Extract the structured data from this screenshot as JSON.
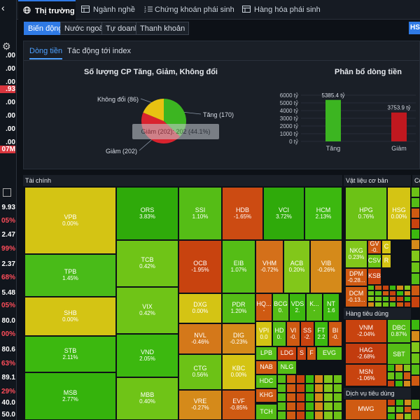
{
  "tabs": [
    {
      "label": "Thị trường",
      "icon": "globe-icon",
      "active": true
    },
    {
      "label": "Ngành nghề",
      "icon": "table-icon",
      "active": false
    },
    {
      "label": "Chứng khoán phái sinh",
      "icon": "sort-icon",
      "active": false
    },
    {
      "label": "Hàng hóa phái sinh",
      "icon": "table-icon",
      "active": false
    }
  ],
  "subtabs": [
    "Biến động",
    "Nước ngoài",
    "Tự doanh",
    "Thanh khoản"
  ],
  "hs_button": "HSX",
  "left_values": [
    {
      "text": ".00",
      "color": "#ffffff"
    },
    {
      "text": ".00",
      "color": "#ffffff"
    },
    {
      "text": ".00",
      "color": "#ffffff"
    },
    {
      "text": ".93",
      "color": "#ffffff",
      "bg": "#d9363e"
    },
    {
      "text": ".00",
      "color": "#ffffff"
    },
    {
      "text": ".00",
      "color": "#ffffff"
    },
    {
      "text": ".00",
      "color": "#ffffff"
    },
    {
      "text": ".00",
      "color": "#ffffff"
    },
    {
      "text": "07M",
      "color": "#ffffff",
      "bg": "#d9363e"
    },
    {
      "text": "9.93",
      "color": "#ffffff"
    },
    {
      "text": "05%",
      "color": "#ff4d5a"
    },
    {
      "text": "2.47",
      "color": "#ffffff"
    },
    {
      "text": "99%",
      "color": "#ff4d5a"
    },
    {
      "text": "2.37",
      "color": "#ffffff"
    },
    {
      "text": "68%",
      "color": "#ff4d5a"
    },
    {
      "text": "5.48",
      "color": "#ffffff"
    },
    {
      "text": "05%",
      "color": "#ff4d5a"
    },
    {
      "text": "80.0",
      "color": "#ffffff"
    },
    {
      "text": "00%",
      "color": "#ff4d5a"
    },
    {
      "text": "80.6",
      "color": "#ffffff"
    },
    {
      "text": "63%",
      "color": "#ff4d5a"
    },
    {
      "text": "89.1",
      "color": "#ffffff"
    },
    {
      "text": "29%",
      "color": "#ff4d5a"
    },
    {
      "text": "40.0",
      "color": "#ffffff"
    },
    {
      "text": "50.0",
      "color": "#ffffff"
    }
  ],
  "panel": {
    "tabs": [
      "Dòng tiền",
      "Tác động tới index"
    ],
    "pie_title": "Số lượng CP Tăng, Giảm, Không đổi",
    "bar_title": "Phân bổ dòng tiền"
  },
  "chart_data": [
    {
      "type": "pie",
      "title": "Số lượng CP Tăng, Giảm, Không đổi",
      "slices": [
        {
          "label": "Tăng (170)",
          "value": 170,
          "color": "#3cb521"
        },
        {
          "label": "Giảm (202)",
          "value": 202,
          "color": "#d9232e"
        },
        {
          "label": "Không đổi (86)",
          "value": 86,
          "color": "#e8c212"
        }
      ],
      "tooltip": "Giảm (202): 202 (44.1%)"
    },
    {
      "type": "bar",
      "title": "Phân bổ dòng tiền",
      "categories": [
        "Tăng",
        "Giảm"
      ],
      "values": [
        5385.4,
        3753.9
      ],
      "value_labels": [
        "5385.4 tỷ",
        "3753.9 tỷ"
      ],
      "colors": [
        "#3cb521",
        "#c0181f"
      ],
      "ylim": [
        0,
        6000
      ],
      "yticks": [
        "6000 tỷ",
        "5000 tỷ",
        "4000 tỷ",
        "3000 tỷ",
        "2000 tỷ",
        "1000 tỷ",
        "0 tỷ"
      ],
      "grid": true
    }
  ],
  "treemap": {
    "sections": [
      "Tài chính",
      "Vật liệu cơ bản",
      "Cô",
      "Hàng tiêu dùng",
      "Dịch vụ tiêu dùng"
    ],
    "cells": [
      {
        "sym": "VPB",
        "pct": "0.00%",
        "color": "#d4c414"
      },
      {
        "sym": "TPB",
        "pct": "1.45%",
        "color": "#49bb18"
      },
      {
        "sym": "SHB",
        "pct": "0.00%",
        "color": "#d4c414"
      },
      {
        "sym": "STB",
        "pct": "2.11%",
        "color": "#3cb80f"
      },
      {
        "sym": "MSB",
        "pct": "2.77%",
        "color": "#35b30c"
      },
      {
        "sym": "ORS",
        "pct": "3.83%",
        "color": "#2faa0a"
      },
      {
        "sym": "TCB",
        "pct": "0.42%",
        "color": "#6fc417"
      },
      {
        "sym": "VIX",
        "pct": "0.42%",
        "color": "#6fc417"
      },
      {
        "sym": "VND",
        "pct": "2.05%",
        "color": "#3cb80f"
      },
      {
        "sym": "MBB",
        "pct": "0.40%",
        "color": "#6fc417"
      },
      {
        "sym": "SSI",
        "pct": "1.10%",
        "color": "#55bd16"
      },
      {
        "sym": "HDB",
        "pct": "-1.65%",
        "color": "#cc4b12"
      },
      {
        "sym": "VCI",
        "pct": "3.72%",
        "color": "#2faa0a"
      },
      {
        "sym": "HCM",
        "pct": "2.13%",
        "color": "#3cb80f"
      },
      {
        "sym": "OCB",
        "pct": "-1.95%",
        "color": "#c8430f"
      },
      {
        "sym": "EIB",
        "pct": "1.07%",
        "color": "#55bd16"
      },
      {
        "sym": "VHM",
        "pct": "-0.72%",
        "color": "#d4701a"
      },
      {
        "sym": "ACB",
        "pct": "0.20%",
        "color": "#82c71a"
      },
      {
        "sym": "VIB",
        "pct": "-0.26%",
        "color": "#d58a1a"
      },
      {
        "sym": "DXG",
        "pct": "0.00%",
        "color": "#d4c414"
      },
      {
        "sym": "PDR",
        "pct": "1.20%",
        "color": "#55bd16"
      },
      {
        "sym": "NVL",
        "pct": "-0.46%",
        "color": "#d4781a"
      },
      {
        "sym": "DIG",
        "pct": "-0.23%",
        "color": "#d58a1a"
      },
      {
        "sym": "CTG",
        "pct": "0.56%",
        "color": "#6cc216"
      },
      {
        "sym": "KBC",
        "pct": "0.00%",
        "color": "#d4c414"
      },
      {
        "sym": "VRE",
        "pct": "-0.27%",
        "color": "#d58a1a"
      },
      {
        "sym": "EVF",
        "pct": "-0.85%",
        "color": "#cf5a12"
      },
      {
        "sym": "HQ...",
        "pct": "-",
        "color": "#cf5a12"
      },
      {
        "sym": "BCG",
        "pct": "0.",
        "color": "#55bd16"
      },
      {
        "sym": "VDS",
        "pct": "2.",
        "color": "#3cb80f"
      },
      {
        "sym": "K...",
        "pct": "-",
        "color": "#55bd16"
      },
      {
        "sym": "NT",
        "pct": "1.6",
        "color": "#3cb80f"
      },
      {
        "sym": "VPI",
        "pct": "0.0",
        "color": "#d4c414"
      },
      {
        "sym": "HD",
        "pct": "0.",
        "color": "#55bd16"
      },
      {
        "sym": "VI",
        "pct": "-0.",
        "color": "#cf5a12"
      },
      {
        "sym": "SS",
        "pct": "-2.",
        "color": "#c8430f"
      },
      {
        "sym": "FT",
        "pct": "2.2",
        "color": "#3cb80f"
      },
      {
        "sym": "BI",
        "pct": "-0.",
        "color": "#cf5a12"
      },
      {
        "sym": "LPB",
        "pct": "",
        "color": "#55bd16"
      },
      {
        "sym": "LDG",
        "pct": "",
        "color": "#c8430f"
      },
      {
        "sym": "S",
        "pct": "",
        "color": "#c8430f"
      },
      {
        "sym": "F",
        "pct": "",
        "color": "#cf5a12"
      },
      {
        "sym": "NAB",
        "pct": "",
        "color": "#cf5a12"
      },
      {
        "sym": "NLG",
        "pct": "",
        "color": "#55bd16"
      },
      {
        "sym": "HDC",
        "pct": "",
        "color": "#55bd16"
      },
      {
        "sym": "KHG",
        "pct": "",
        "color": "#cf5a12"
      },
      {
        "sym": "TCH",
        "pct": "",
        "color": "#55bd16"
      },
      {
        "sym": "EVG",
        "pct": "",
        "color": "#55bd16"
      },
      {
        "sym": "HPG",
        "pct": "0.76%",
        "color": "#6cc216"
      },
      {
        "sym": "HSG",
        "pct": "0.00%",
        "color": "#d4c414"
      },
      {
        "sym": "NKG",
        "pct": "0.23%",
        "color": "#82c71a"
      },
      {
        "sym": "GV",
        "pct": "-0.",
        "color": "#cf5a12"
      },
      {
        "sym": "C",
        "pct": "",
        "color": "#d4c414"
      },
      {
        "sym": "DPM",
        "pct": "-0.28...",
        "color": "#cf5a12"
      },
      {
        "sym": "CSV",
        "pct": "",
        "color": "#6cc216"
      },
      {
        "sym": "R",
        "pct": "",
        "color": "#d4c414"
      },
      {
        "sym": "KSB",
        "pct": "",
        "color": "#c8430f"
      },
      {
        "sym": "DCM",
        "pct": "-0.13...",
        "color": "#cf5a12"
      },
      {
        "sym": "VNM",
        "pct": "-2.04%",
        "color": "#c8430f"
      },
      {
        "sym": "DBC",
        "pct": "0.87%",
        "color": "#55bd16"
      },
      {
        "sym": "HAG",
        "pct": "-2.68%",
        "color": "#c23c0e"
      },
      {
        "sym": "SBT",
        "pct": "",
        "color": "#55bd16"
      },
      {
        "sym": "MSN",
        "pct": "-1.06%",
        "color": "#c8430f"
      },
      {
        "sym": "MWG",
        "pct": "",
        "color": "#cf5a12"
      }
    ]
  }
}
